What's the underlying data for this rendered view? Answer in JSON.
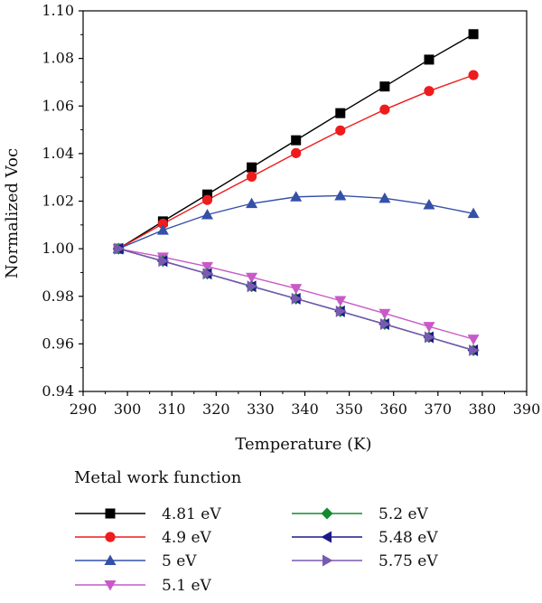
{
  "chart_data": {
    "type": "line",
    "title": "",
    "xlabel": "Temperature (K)",
    "ylabel": "Normalized Voc",
    "xlim": [
      290,
      390
    ],
    "ylim": [
      0.94,
      1.1
    ],
    "x_ticks": [
      "290",
      "300",
      "310",
      "320",
      "330",
      "340",
      "350",
      "360",
      "370",
      "380",
      "390"
    ],
    "y_ticks": [
      "0.94",
      "0.96",
      "0.98",
      "1.00",
      "1.02",
      "1.04",
      "1.06",
      "1.08",
      "1.10"
    ],
    "grid": false,
    "legend_title": "Metal work function",
    "legend_placement": "bottom",
    "x": [
      298,
      308,
      318,
      328,
      338,
      348,
      358,
      368,
      378
    ],
    "series": [
      {
        "name": "4.81 eV",
        "color": "#000000",
        "marker": "square",
        "values": [
          1.0,
          1.0115,
          1.0228,
          1.0342,
          1.0456,
          1.057,
          1.0682,
          1.0795,
          1.0902
        ]
      },
      {
        "name": "4.9 eV",
        "color": "#ee1c1c",
        "marker": "circle",
        "values": [
          1.0,
          1.0105,
          1.0205,
          1.0303,
          1.0402,
          1.0497,
          1.0585,
          1.0663,
          1.073
        ]
      },
      {
        "name": "5 eV",
        "color": "#3450a8",
        "marker": "triangle-up",
        "values": [
          1.0,
          1.0078,
          1.0143,
          1.019,
          1.0218,
          1.0223,
          1.0212,
          1.0185,
          1.0148
        ]
      },
      {
        "name": "5.1 eV",
        "color": "#c85ac8",
        "marker": "triangle-down",
        "values": [
          1.0,
          0.9965,
          0.9925,
          0.988,
          0.9833,
          0.9782,
          0.9728,
          0.9673,
          0.962
        ]
      },
      {
        "name": "5.2 eV",
        "color": "#138a30",
        "marker": "diamond",
        "values": [
          1.0,
          0.9948,
          0.9895,
          0.9842,
          0.979,
          0.9737,
          0.9683,
          0.9628,
          0.9573
        ]
      },
      {
        "name": "5.48 eV",
        "color": "#1a1a8a",
        "marker": "triangle-left",
        "values": [
          1.0,
          0.9948,
          0.9895,
          0.9842,
          0.979,
          0.9737,
          0.9683,
          0.9628,
          0.9573
        ]
      },
      {
        "name": "5.75 eV",
        "color": "#7a5ab0",
        "marker": "triangle-right",
        "values": [
          1.0,
          0.9948,
          0.9895,
          0.9842,
          0.979,
          0.9737,
          0.9683,
          0.9628,
          0.9573
        ]
      }
    ]
  }
}
